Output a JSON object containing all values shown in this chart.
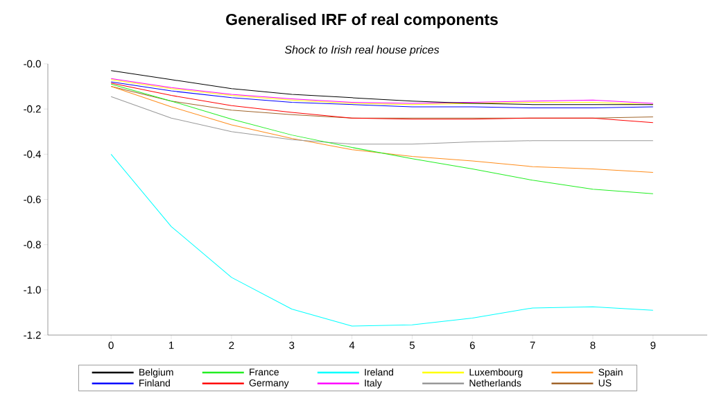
{
  "chart_data": {
    "type": "line",
    "title": "Generalised IRF of real components",
    "subtitle": "Shock to Irish real house prices",
    "x": [
      0,
      1,
      2,
      3,
      4,
      5,
      6,
      7,
      8,
      9
    ],
    "xlim": [
      -1.05,
      9.9
    ],
    "xticks": [
      0,
      1,
      2,
      3,
      4,
      5,
      6,
      7,
      8,
      9
    ],
    "ylim": [
      -1.2,
      0
    ],
    "yticks": [
      {
        "value": 0,
        "label": "-0.0"
      },
      -0.2,
      -0.4,
      -0.6,
      -0.8,
      {
        "value": -1.0,
        "label": "-1.0"
      },
      -1.2
    ],
    "grid": false,
    "legend": "bottom",
    "marker": "none",
    "line_style": "solid",
    "series": [
      {
        "name": "Belgium",
        "color": "#000000",
        "values": [
          -0.03,
          -0.07,
          -0.11,
          -0.135,
          -0.15,
          -0.165,
          -0.175,
          -0.18,
          -0.18,
          -0.18
        ]
      },
      {
        "name": "Finland",
        "color": "#0000ff",
        "values": [
          -0.08,
          -0.12,
          -0.15,
          -0.17,
          -0.18,
          -0.19,
          -0.19,
          -0.195,
          -0.195,
          -0.19
        ]
      },
      {
        "name": "France",
        "color": "#22ee22",
        "values": [
          -0.09,
          -0.165,
          -0.245,
          -0.315,
          -0.37,
          -0.42,
          -0.465,
          -0.515,
          -0.555,
          -0.575
        ]
      },
      {
        "name": "Germany",
        "color": "#ff0000",
        "values": [
          -0.085,
          -0.14,
          -0.185,
          -0.215,
          -0.24,
          -0.245,
          -0.245,
          -0.24,
          -0.24,
          -0.26
        ]
      },
      {
        "name": "Ireland",
        "color": "#00ffff",
        "values": [
          -0.4,
          -0.72,
          -0.945,
          -1.085,
          -1.16,
          -1.155,
          -1.125,
          -1.08,
          -1.075,
          -1.09
        ]
      },
      {
        "name": "Italy",
        "color": "#ff00ff",
        "values": [
          -0.065,
          -0.105,
          -0.135,
          -0.155,
          -0.17,
          -0.175,
          -0.17,
          -0.165,
          -0.16,
          -0.175
        ]
      },
      {
        "name": "Luxembourg",
        "color": "#ffff00",
        "values": [
          -0.07,
          -0.11,
          -0.14,
          -0.16,
          -0.175,
          -0.18,
          -0.175,
          -0.17,
          -0.17,
          -0.18
        ]
      },
      {
        "name": "Netherlands",
        "color": "#999999",
        "values": [
          -0.145,
          -0.24,
          -0.3,
          -0.335,
          -0.355,
          -0.355,
          -0.345,
          -0.34,
          -0.34,
          -0.34
        ]
      },
      {
        "name": "Spain",
        "color": "#ff8c1a",
        "values": [
          -0.1,
          -0.19,
          -0.27,
          -0.33,
          -0.38,
          -0.41,
          -0.43,
          -0.455,
          -0.465,
          -0.48
        ]
      },
      {
        "name": "US",
        "color": "#a0642a",
        "values": [
          -0.1,
          -0.165,
          -0.205,
          -0.225,
          -0.24,
          -0.24,
          -0.24,
          -0.24,
          -0.24,
          -0.235
        ]
      }
    ]
  }
}
